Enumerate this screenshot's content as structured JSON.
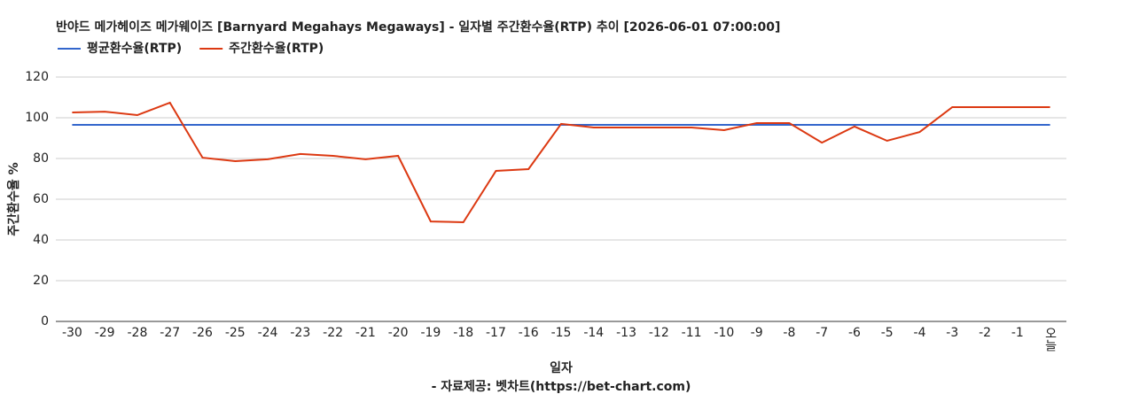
{
  "chart_data": {
    "type": "line",
    "title": "반야드 메가헤이즈 메가웨이즈 [Barnyard Megahays Megaways] - 일자별 주간환수율(RTP) 추이 [2026-06-01 07:00:00]",
    "x_label": "일자",
    "y_label": "주간환수율 %",
    "source": "- 자료제공: 벳차트(https://bet-chart.com)",
    "categories": [
      "-30",
      "-29",
      "-28",
      "-27",
      "-26",
      "-25",
      "-24",
      "-23",
      "-22",
      "-21",
      "-20",
      "-19",
      "-18",
      "-17",
      "-16",
      "-15",
      "-14",
      "-13",
      "-12",
      "-11",
      "-10",
      "-9",
      "-8",
      "-7",
      "-6",
      "-5",
      "-4",
      "-3",
      "-2",
      "-1",
      "오늘"
    ],
    "series": [
      {
        "name": "평균환수율(RTP)",
        "color": "#3366cc",
        "values": [
          96.5,
          96.5,
          96.5,
          96.5,
          96.5,
          96.5,
          96.5,
          96.5,
          96.5,
          96.5,
          96.5,
          96.5,
          96.5,
          96.5,
          96.5,
          96.5,
          96.5,
          96.5,
          96.5,
          96.5,
          96.5,
          96.5,
          96.5,
          96.5,
          96.5,
          96.5,
          96.5,
          96.5,
          96.5,
          96.5,
          96.5
        ]
      },
      {
        "name": "주간환수율(RTP)",
        "color": "#dc3912",
        "values": [
          102.6,
          103,
          101.3,
          107.4,
          80.4,
          78.7,
          79.6,
          82.2,
          81.3,
          79.6,
          81.3,
          49.1,
          48.7,
          73.9,
          74.8,
          97,
          95.2,
          95.2,
          95.2,
          95.2,
          93.9,
          97.4,
          97.4,
          87.8,
          95.7,
          88.7,
          93,
          105.2,
          105.2,
          105.2,
          105.2
        ]
      }
    ],
    "ylim": [
      0,
      120
    ],
    "yticks": [
      0,
      20,
      40,
      60,
      80,
      100,
      120
    ],
    "grid": true
  }
}
